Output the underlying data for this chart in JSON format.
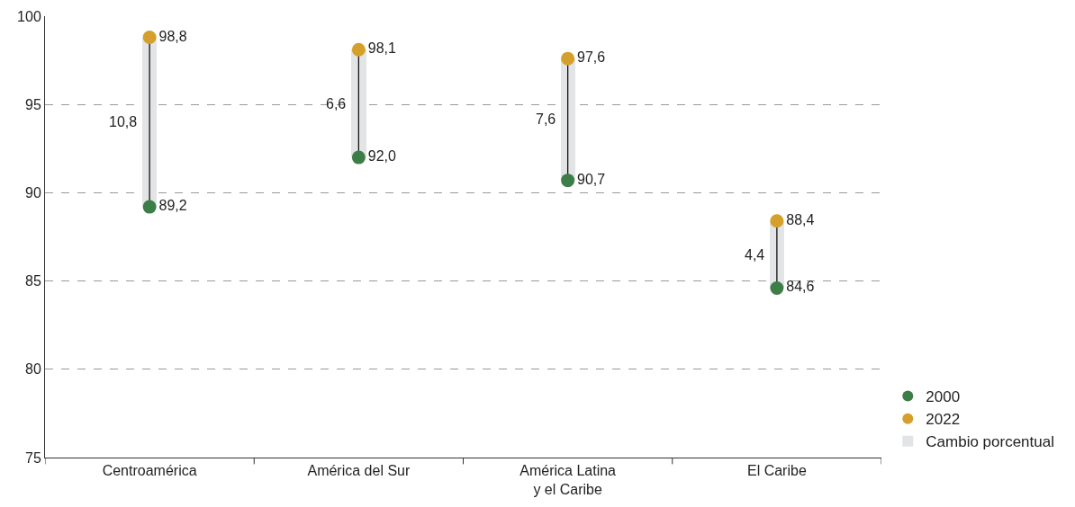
{
  "chart_data": {
    "type": "scatter",
    "categories": [
      "Centroamérica",
      "América del Sur",
      "América Latina\ny el Caribe",
      "El Caribe"
    ],
    "series": [
      {
        "type": "bar",
        "name": "Cambio porcentual",
        "color": "#e3e4e6",
        "base": [
          89.2,
          92.0,
          90.7,
          84.6
        ],
        "values": [
          9.6,
          6.1,
          6.9,
          3.8
        ]
      },
      {
        "type": "line",
        "marker": "none",
        "color": "#111111",
        "x": [
          "Centroamérica",
          "Centroamérica",
          null,
          "América del Sur",
          "América del Sur",
          null,
          "América Latina\ny el Caribe",
          "América Latina\ny el Caribe",
          null,
          "El Caribe",
          "El Caribe"
        ],
        "values": [
          89.2,
          98.8,
          null,
          92.0,
          98.1,
          null,
          90.7,
          97.6,
          null,
          84.6,
          88.4
        ]
      },
      {
        "name": "2000",
        "color": "#3d7d47",
        "values": [
          89.2,
          92.0,
          90.7,
          84.6
        ],
        "value_labels": [
          "89,2",
          "92,0",
          "90,7",
          "84,6"
        ]
      },
      {
        "name": "2022",
        "color": "#d4a02b",
        "values": [
          98.8,
          98.1,
          97.6,
          88.4
        ],
        "value_labels": [
          "98,8",
          "98,1",
          "97,6",
          "88,4"
        ]
      }
    ],
    "annotations": [
      {
        "text": "10,8",
        "x": "Centroamérica",
        "y": 94.0
      },
      {
        "text": "6,6",
        "x": "América del Sur",
        "y": 95.05
      },
      {
        "text": "7,6",
        "x": "América Latina\ny el Caribe",
        "y": 94.15
      },
      {
        "text": "4,4",
        "x": "El Caribe",
        "y": 86.5
      }
    ],
    "ylim": [
      75,
      100
    ],
    "yticks": [
      75,
      80,
      85,
      90,
      95,
      100
    ],
    "grid": "y",
    "legend": "bottom right",
    "marker": "circle"
  }
}
